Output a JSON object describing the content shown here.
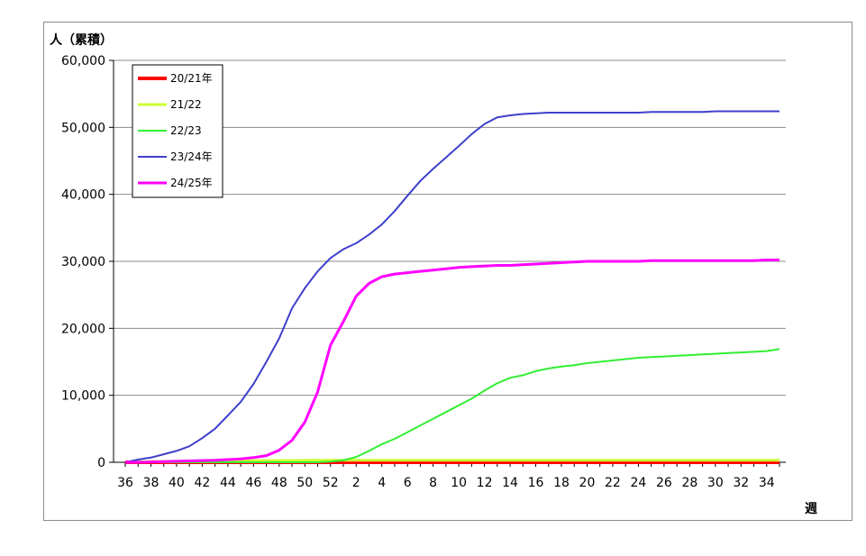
{
  "chart_data": {
    "type": "line",
    "ylabel": "人（累積）",
    "xlabel": "週",
    "ylim": [
      0,
      60000
    ],
    "y_ticks": [
      0,
      10000,
      20000,
      30000,
      40000,
      50000,
      60000
    ],
    "y_tick_labels": [
      "0",
      "10,000",
      "20,000",
      "30,000",
      "40,000",
      "50,000",
      "60,000"
    ],
    "x_tick_labels": [
      "36",
      "38",
      "40",
      "42",
      "44",
      "46",
      "48",
      "50",
      "52",
      "2",
      "4",
      "6",
      "8",
      "10",
      "12",
      "14",
      "16",
      "18",
      "20",
      "22",
      "24",
      "26",
      "28",
      "30",
      "32",
      "34"
    ],
    "x": [
      "36",
      "37",
      "38",
      "39",
      "40",
      "41",
      "42",
      "43",
      "44",
      "45",
      "46",
      "47",
      "48",
      "49",
      "50",
      "51",
      "52",
      "1",
      "2",
      "3",
      "4",
      "5",
      "6",
      "7",
      "8",
      "9",
      "10",
      "11",
      "12",
      "13",
      "14",
      "15",
      "16",
      "17",
      "18",
      "19",
      "20",
      "21",
      "22",
      "23",
      "24",
      "25",
      "26",
      "27",
      "28",
      "29",
      "30",
      "31",
      "32",
      "33",
      "34",
      "35"
    ],
    "grid": "horizontal",
    "legend_position": "top-left",
    "series": [
      {
        "name": "20/21年",
        "color": "#ff0000",
        "width": 4,
        "values": [
          0,
          0,
          0,
          0,
          0,
          0,
          0,
          0,
          0,
          0,
          0,
          0,
          0,
          0,
          0,
          0,
          0,
          0,
          0,
          0,
          0,
          0,
          0,
          0,
          0,
          0,
          0,
          0,
          0,
          0,
          0,
          0,
          0,
          0,
          0,
          0,
          0,
          0,
          0,
          0,
          0,
          0,
          0,
          0,
          0,
          0,
          0,
          0,
          0,
          0,
          0,
          0
        ]
      },
      {
        "name": "21/22",
        "color": "#ccff33",
        "width": 3,
        "values": [
          0,
          50,
          100,
          120,
          150,
          170,
          190,
          200,
          220,
          230,
          240,
          250,
          260,
          270,
          280,
          290,
          300,
          300,
          300,
          300,
          300,
          300,
          300,
          300,
          300,
          300,
          300,
          300,
          300,
          300,
          300,
          300,
          300,
          300,
          300,
          300,
          300,
          300,
          300,
          300,
          300,
          300,
          300,
          300,
          300,
          300,
          300,
          300,
          300,
          300,
          300,
          300
        ]
      },
      {
        "name": "22/23",
        "color": "#33ee33",
        "width": 2,
        "values": [
          0,
          0,
          0,
          0,
          0,
          0,
          0,
          0,
          0,
          0,
          0,
          0,
          0,
          0,
          0,
          0,
          100,
          300,
          800,
          1700,
          2700,
          3500,
          4500,
          5500,
          6500,
          7500,
          8500,
          9500,
          10700,
          11800,
          12600,
          13000,
          13600,
          14000,
          14300,
          14500,
          14800,
          15000,
          15200,
          15400,
          15600,
          15700,
          15800,
          15900,
          16000,
          16100,
          16200,
          16300,
          16400,
          16500,
          16600,
          16900
        ]
      },
      {
        "name": "23/24年",
        "color": "#3f3fcc",
        "width": 2,
        "values": [
          0,
          400,
          700,
          1200,
          1700,
          2400,
          3600,
          5000,
          7000,
          9000,
          11700,
          15000,
          18500,
          23000,
          26000,
          28500,
          30500,
          31800,
          32700,
          34000,
          35500,
          37500,
          39800,
          42000,
          43800,
          45500,
          47200,
          49000,
          50500,
          51500,
          51800,
          52000,
          52100,
          52200,
          52200,
          52200,
          52200,
          52200,
          52200,
          52200,
          52200,
          52300,
          52300,
          52300,
          52300,
          52300,
          52400,
          52400,
          52400,
          52400,
          52400,
          52400
        ]
      },
      {
        "name": "24/25年",
        "color": "#ff00ff",
        "width": 3,
        "values": [
          0,
          0,
          50,
          100,
          150,
          200,
          250,
          300,
          400,
          500,
          700,
          1000,
          1800,
          3300,
          6000,
          10500,
          17500,
          21000,
          24800,
          26700,
          27700,
          28100,
          28300,
          28500,
          28700,
          28900,
          29100,
          29200,
          29300,
          29400,
          29400,
          29500,
          29600,
          29700,
          29800,
          29900,
          30000,
          30000,
          30000,
          30000,
          30000,
          30100,
          30100,
          30100,
          30100,
          30100,
          30100,
          30100,
          30100,
          30100,
          30200,
          30200
        ]
      }
    ]
  }
}
